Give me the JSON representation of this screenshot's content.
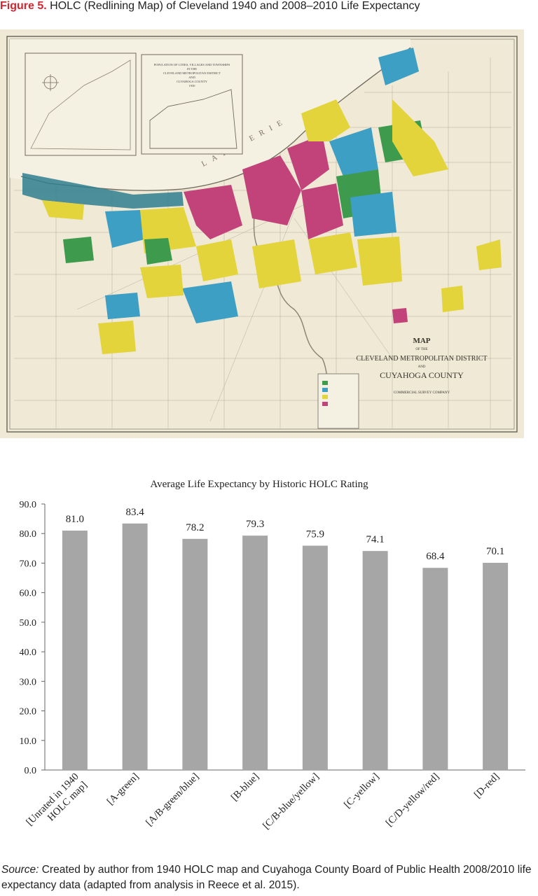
{
  "figure": {
    "label": "Figure 5.",
    "title": "HOLC (Redlining Map) of Cleveland 1940 and 2008–2010 Life Expectancy"
  },
  "map": {
    "lake_label": "LAKE ERIE",
    "title_line1": "MAP",
    "title_line2": "OF THE",
    "title_line3": "CLEVELAND METROPOLITAN DISTRICT",
    "title_line4": "AND",
    "title_line5": "CUYAHOGA COUNTY",
    "publisher": "COMMERCIAL SURVEY COMPANY",
    "inset_title_1": "POPULATION OF CITIES, VILLAGES AND TOWNSHIPS",
    "inset_title_2": "IN THE",
    "inset_title_3": "CLEVELAND METROPOLITAN DISTRICT",
    "inset_title_4": "AND",
    "inset_title_5": "CUYAHOGA COUNTY",
    "inset_title_6": "1930",
    "colors": {
      "paper": "#efe9d6",
      "green": "#3e9a4c",
      "blue": "#3d9fc4",
      "yellow": "#e2d43a",
      "red": "#c2437a",
      "line": "#6f6a5e"
    }
  },
  "chart_data": {
    "type": "bar",
    "title": "Average Life Expectancy by Historic HOLC Rating",
    "categories": [
      [
        "[Unrated in 1940",
        "HOLC map]"
      ],
      [
        "[A-green]"
      ],
      [
        "[A/B-green/blue]"
      ],
      [
        "[B-blue]"
      ],
      [
        "[C/B-blue/yellow]"
      ],
      [
        "[C-yellow]"
      ],
      [
        "[C/D-yellow/red]"
      ],
      [
        "[D-red]"
      ]
    ],
    "values": [
      81.0,
      83.4,
      78.2,
      79.3,
      75.9,
      74.1,
      68.4,
      70.1
    ],
    "value_labels": [
      "81.0",
      "83.4",
      "78.2",
      "79.3",
      "75.9",
      "74.1",
      "68.4",
      "70.1"
    ],
    "y_ticks": [
      "0.0",
      "10.0",
      "20.0",
      "30.0",
      "40.0",
      "50.0",
      "60.0",
      "70.0",
      "80.0",
      "90.0"
    ],
    "ylim": [
      0,
      90
    ],
    "bar_color": "#a6a6a6",
    "grid": false,
    "legend": "none"
  },
  "source": {
    "label": "Source:",
    "text": " Created by author from 1940 HOLC map and Cuyahoga County Board of Public Health 2008/2010 life expectancy data (adapted from analysis in Reece et al. 2015)."
  }
}
